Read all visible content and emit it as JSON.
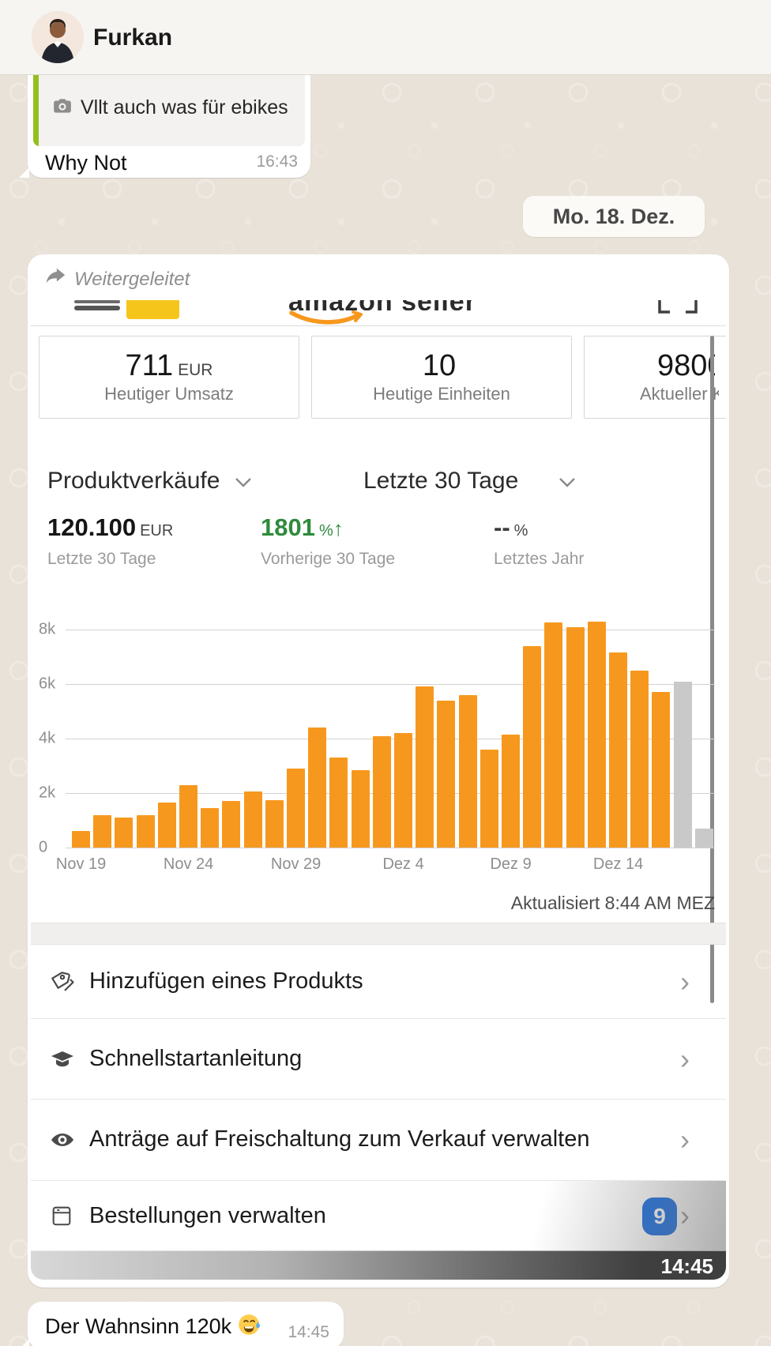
{
  "header": {
    "contact_name": "Furkan"
  },
  "chat": {
    "reply": {
      "quote_text": "Vllt auch was für ebikes",
      "text": "Why Not",
      "time": "16:43"
    },
    "date_pill": "Mo. 18. Dez.",
    "forwarded_label": "Weitergeleitet",
    "caption": {
      "text": "Der Wahnsinn 120k",
      "emoji": "😅",
      "time": "14:45"
    }
  },
  "seller_app": {
    "logo_text": "amazon seller",
    "stat_cards": [
      {
        "value": "711",
        "unit": "EUR",
        "label": "Heutiger Umsatz"
      },
      {
        "value": "10",
        "unit": "",
        "label": "Heutige Einheiten"
      },
      {
        "value": "980",
        "value_clipped": "0",
        "label": "Aktueller",
        "label_clipped": "K"
      }
    ],
    "selectors": {
      "metric": "Produktverkäufe",
      "range": "Letzte 30 Tage"
    },
    "stats": {
      "primary": {
        "value": "120.100",
        "unit": "EUR",
        "label": "Letzte 30 Tage"
      },
      "comparison": {
        "value": "1801",
        "unit": "%",
        "arrow": "↑",
        "label": "Vorherige 30 Tage"
      },
      "yoy": {
        "value": "--",
        "unit": "%",
        "label": "Letztes Jahr"
      }
    },
    "updated": "Aktualisiert 8:44 AM MEZ",
    "menu": [
      {
        "icon": "tags-icon",
        "label": "Hinzufügen eines Produkts"
      },
      {
        "icon": "graduation-cap-icon",
        "label": "Schnellstartanleitung"
      },
      {
        "icon": "eye-icon",
        "label": "Anträge auf Freischaltung zum Verkauf verwalten"
      },
      {
        "icon": "orders-icon",
        "label": "Bestellungen verwalten",
        "badge": "9"
      }
    ],
    "image_time": "14:45"
  },
  "chart_data": {
    "type": "bar",
    "title": "Produktverkäufe – Letzte 30 Tage",
    "xlabel": "",
    "ylabel": "",
    "x_tick_labels": [
      "Nov 19",
      "Nov 24",
      "Nov 29",
      "Dez 4",
      "Dez 9",
      "Dez 14"
    ],
    "x_tick_indices": [
      0,
      5,
      10,
      15,
      20,
      25
    ],
    "y_ticks": [
      {
        "value": 0,
        "label": "0"
      },
      {
        "value": 2000,
        "label": "2k"
      },
      {
        "value": 4000,
        "label": "4k"
      },
      {
        "value": 6000,
        "label": "6k"
      },
      {
        "value": 8000,
        "label": "8k"
      }
    ],
    "ylim": [
      0,
      8800
    ],
    "grid": true,
    "legend": "none",
    "values": [
      600,
      1200,
      1100,
      1200,
      1650,
      2300,
      1450,
      1700,
      2050,
      1750,
      2900,
      4400,
      3300,
      2850,
      4100,
      4200,
      5900,
      5400,
      5600,
      3600,
      4150,
      7400,
      8250,
      8100,
      8300,
      7150,
      6500,
      5700,
      6100,
      700
    ],
    "incomplete_last_n": 2,
    "colors": {
      "bar": "#f7981e",
      "bar_incomplete": "#c9c9c9",
      "gridline": "#d2d2d2",
      "axis_text": "#8e8e8e"
    }
  }
}
